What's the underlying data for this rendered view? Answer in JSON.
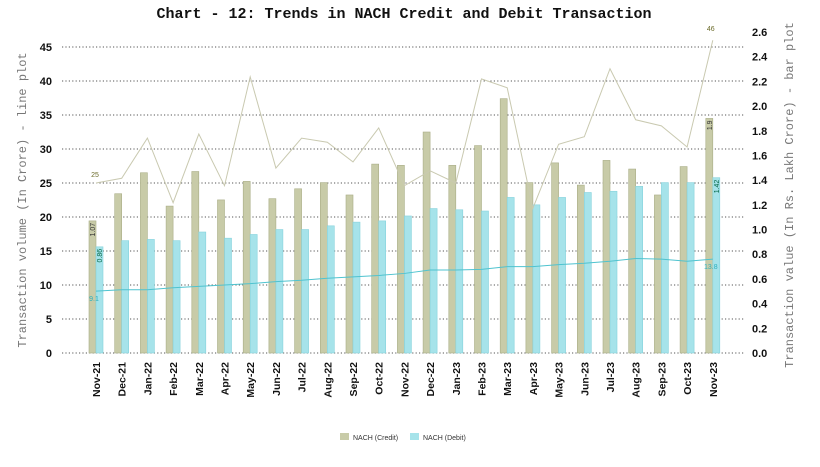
{
  "chart_data": {
    "type": "bar",
    "title": "Chart - 12: Trends in NACH Credit and Debit Transaction",
    "ylabel_left": "Transaction volume (In Crore) - line plot",
    "ylabel_right": "Transaction value (In Rs. Lakh Crore) - bar plot",
    "ylim_left": [
      0,
      45
    ],
    "ylim_right": [
      0,
      2.6
    ],
    "yticks_left": [
      0,
      5,
      10,
      15,
      20,
      25,
      30,
      35,
      40,
      45
    ],
    "yticks_right": [
      "0.0",
      "0.2",
      "0.4",
      "0.6",
      "0.8",
      "1.0",
      "1.2",
      "1.4",
      "1.6",
      "1.8",
      "2.0",
      "2.2",
      "2.4",
      "2.6"
    ],
    "grid": "horizontal dotted",
    "legend_position": "bottom",
    "categories": [
      "Nov-21",
      "Dec-21",
      "Jan-22",
      "Feb-22",
      "Mar-22",
      "Apr-22",
      "May-22",
      "Jun-22",
      "Jul-22",
      "Aug-22",
      "Sep-22",
      "Oct-22",
      "Nov-22",
      "Dec-22",
      "Jan-23",
      "Feb-23",
      "Mar-23",
      "Apr-23",
      "May-23",
      "Jun-23",
      "Jul-23",
      "Aug-23",
      "Sep-23",
      "Oct-23",
      "Nov-23"
    ],
    "bar_series": [
      {
        "name": "NACH (Credit)",
        "color": "#c8cba8",
        "values": [
          1.07,
          1.29,
          1.46,
          1.19,
          1.47,
          1.24,
          1.39,
          1.25,
          1.33,
          1.38,
          1.28,
          1.53,
          1.52,
          1.79,
          1.52,
          1.68,
          2.06,
          1.38,
          1.54,
          1.36,
          1.56,
          1.49,
          1.28,
          1.51,
          1.9
        ]
      },
      {
        "name": "NACH (Debit)",
        "color": "#a6e3ea",
        "values": [
          0.86,
          0.91,
          0.92,
          0.91,
          0.98,
          0.93,
          0.96,
          1.0,
          1.0,
          1.03,
          1.06,
          1.07,
          1.11,
          1.17,
          1.16,
          1.15,
          1.26,
          1.2,
          1.26,
          1.3,
          1.31,
          1.35,
          1.38,
          1.38,
          1.42
        ]
      }
    ],
    "line_series": [
      {
        "color": "#c9c9b0",
        "values": [
          25,
          25.7,
          31.6,
          22.1,
          32.2,
          24.6,
          40.6,
          27.2,
          31.6,
          31,
          28.1,
          33.1,
          24.6,
          26.8,
          25,
          40.3,
          39,
          21.3,
          30.7,
          31.8,
          41.8,
          34.3,
          33.4,
          30.3,
          46
        ]
      },
      {
        "color": "#4fc3cf",
        "values": [
          9.1,
          9.3,
          9.3,
          9.6,
          9.8,
          10.0,
          10.2,
          10.5,
          10.7,
          11.0,
          11.2,
          11.4,
          11.7,
          12.2,
          12.2,
          12.3,
          12.7,
          12.7,
          13.0,
          13.2,
          13.5,
          13.9,
          13.8,
          13.5,
          13.8
        ]
      }
    ],
    "annotations": [
      {
        "series": "credit-line",
        "index": 0,
        "text": "25"
      },
      {
        "series": "credit-line",
        "index": 24,
        "text": "46"
      },
      {
        "series": "debit-line",
        "index": 0,
        "text": "9.1"
      },
      {
        "series": "debit-line",
        "index": 24,
        "text": "13.8"
      },
      {
        "series": "credit-bar",
        "index": 0,
        "text": "1.07"
      },
      {
        "series": "credit-bar",
        "index": 24,
        "text": "1.9"
      },
      {
        "series": "debit-bar",
        "index": 0,
        "text": "0.86"
      },
      {
        "series": "debit-bar",
        "index": 24,
        "text": "1.42"
      }
    ]
  }
}
